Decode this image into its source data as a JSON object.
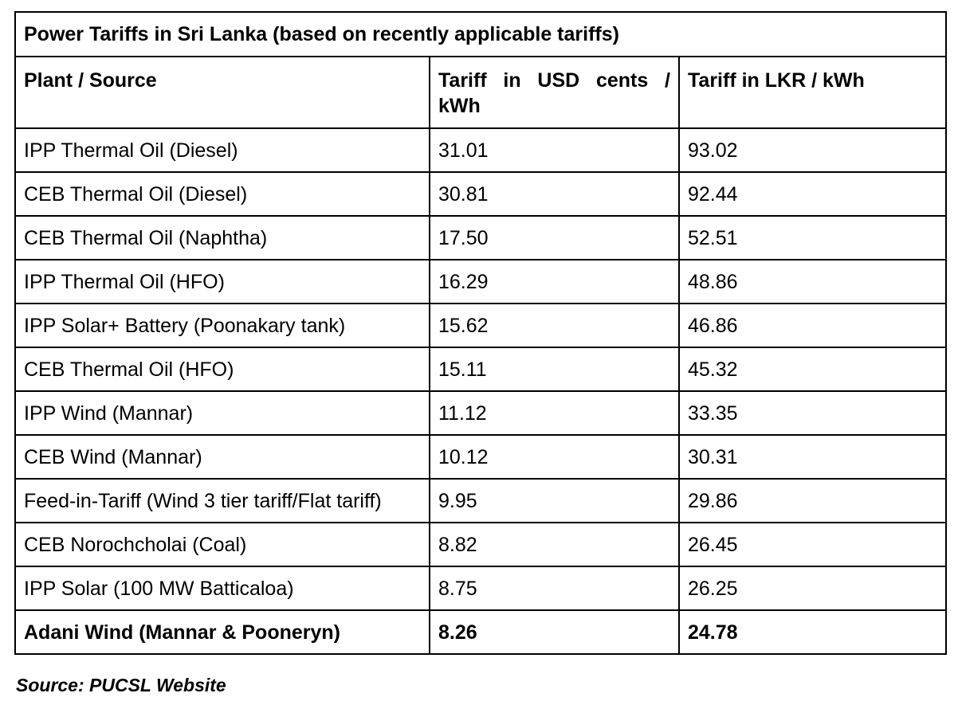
{
  "table": {
    "title": "Power Tariffs in Sri Lanka (based on recently applicable tariffs)",
    "headers": [
      "Plant / Source",
      "Tariff in USD cents / kWh",
      "Tariff in LKR / kWh"
    ],
    "rows": [
      [
        "IPP Thermal Oil (Diesel)",
        "31.01",
        "93.02"
      ],
      [
        "CEB Thermal Oil (Diesel)",
        "30.81",
        "92.44"
      ],
      [
        "CEB Thermal Oil (Naphtha)",
        "17.50",
        "52.51"
      ],
      [
        "IPP Thermal Oil (HFO)",
        "16.29",
        "48.86"
      ],
      [
        "IPP Solar+ Battery (Poonakary tank)",
        "15.62",
        "46.86"
      ],
      [
        "CEB Thermal Oil (HFO)",
        "15.11",
        "45.32"
      ],
      [
        "IPP Wind (Mannar)",
        "11.12",
        "33.35"
      ],
      [
        "CEB Wind (Mannar)",
        "10.12",
        "30.31"
      ],
      [
        "Feed-in-Tariff (Wind 3 tier tariff/Flat tariff)",
        "9.95",
        "29.86"
      ],
      [
        "CEB Norochcholai (Coal)",
        "8.82",
        "26.45"
      ],
      [
        "IPP Solar (100 MW Batticaloa)",
        "8.75",
        "26.25"
      ],
      [
        "Adani Wind (Mannar & Pooneryn)",
        "8.26",
        "24.78"
      ]
    ]
  },
  "source": "Source: PUCSL Website"
}
